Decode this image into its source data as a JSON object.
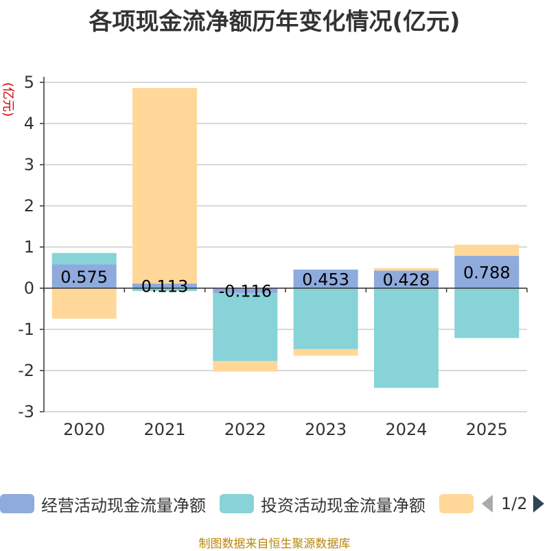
{
  "title": "各项现金流净额历年变化情况(亿元)",
  "source": "制图数据来自恒生聚源数据库",
  "pager": {
    "label": "1/2"
  },
  "colors": {
    "operating": "#8FAADC",
    "investing": "#87D3D7",
    "financing": "#FFD899"
  },
  "chart_data": {
    "type": "bar",
    "stacked": true,
    "categories": [
      "2020",
      "2021",
      "2022",
      "2023",
      "2024",
      "2025"
    ],
    "ylabel": "(亿元)",
    "ylim": [
      -3,
      5
    ],
    "yticks": [
      -3,
      -2,
      -1,
      0,
      1,
      2,
      3,
      4,
      5
    ],
    "grid": true,
    "legend_position": "bottom",
    "series": [
      {
        "name": "经营活动现金流量净额",
        "values": [
          0.575,
          0.113,
          -0.116,
          0.453,
          0.428,
          0.788
        ],
        "data_labels": [
          "0.575",
          "0.113",
          "-0.116",
          "0.453",
          "0.428",
          "0.788"
        ]
      },
      {
        "name": "投资活动现金流量净额",
        "values": [
          0.28,
          -0.07,
          -1.65,
          -1.48,
          -2.42,
          -1.21
        ]
      },
      {
        "name": "",
        "values": [
          -0.74,
          4.75,
          -0.26,
          -0.16,
          0.06,
          0.27
        ]
      }
    ]
  }
}
